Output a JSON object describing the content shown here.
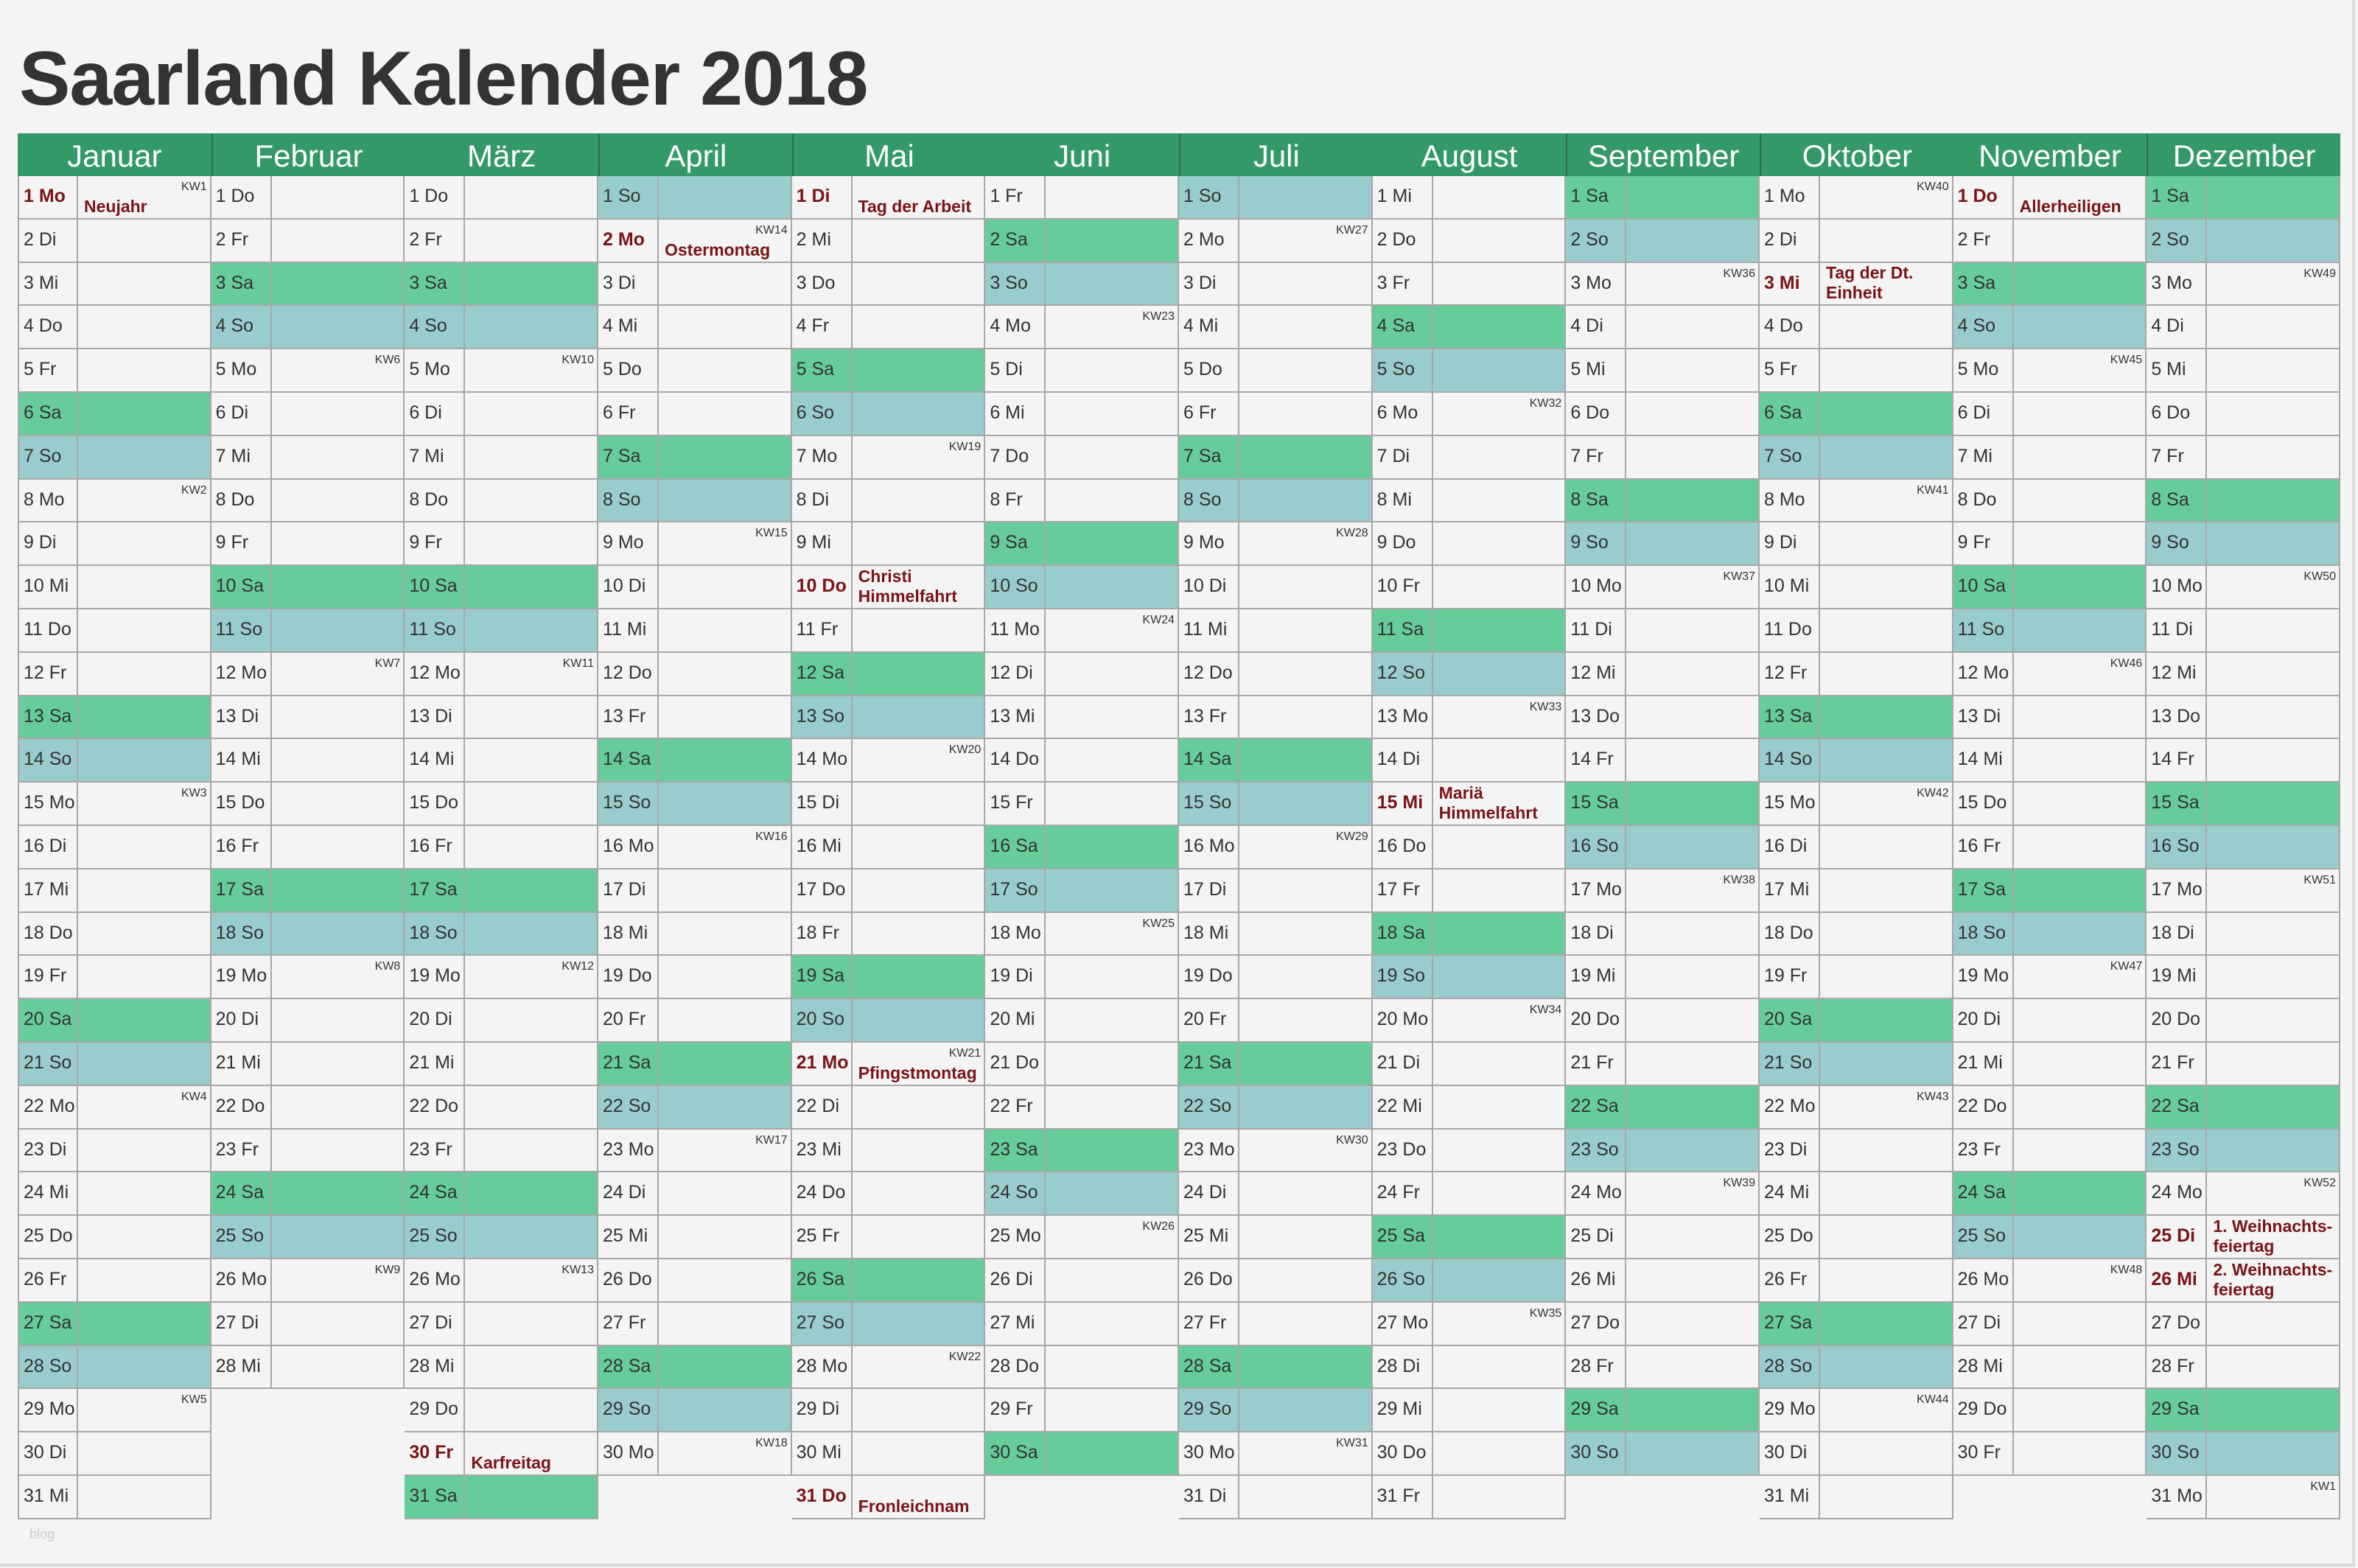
{
  "title": "Saarland Kalender 2018",
  "watermark": "blog",
  "colors": {
    "header": "#339966",
    "saturday": "#66cc99",
    "sunday": "#99cccc",
    "holiday": "#7a1416"
  },
  "months": [
    {
      "name": "Januar",
      "days": [
        "1 Mo",
        "2 Di",
        "3 Mi",
        "4 Do",
        "5 Fr",
        "6 Sa",
        "7 So",
        "8 Mo",
        "9 Di",
        "10 Mi",
        "11 Do",
        "12 Fr",
        "13 Sa",
        "14 So",
        "15 Mo",
        "16 Di",
        "17 Mi",
        "18 Do",
        "19 Fr",
        "20 Sa",
        "21 So",
        "22 Mo",
        "23 Di",
        "24 Mi",
        "25 Do",
        "26 Fr",
        "27 Sa",
        "28 So",
        "29 Mo",
        "30 Di",
        "31 Mi"
      ],
      "kw": {
        "1": "KW1",
        "8": "KW2",
        "15": "KW3",
        "22": "KW4",
        "29": "KW5"
      },
      "holidays": {
        "1": "Neujahr"
      }
    },
    {
      "name": "Februar",
      "days": [
        "1 Do",
        "2 Fr",
        "3 Sa",
        "4 So",
        "5 Mo",
        "6 Di",
        "7 Mi",
        "8 Do",
        "9 Fr",
        "10 Sa",
        "11 So",
        "12 Mo",
        "13 Di",
        "14 Mi",
        "15 Do",
        "16 Fr",
        "17 Sa",
        "18 So",
        "19 Mo",
        "20 Di",
        "21 Mi",
        "22 Do",
        "23 Fr",
        "24 Sa",
        "25 So",
        "26 Mo",
        "27 Di",
        "28 Mi"
      ],
      "kw": {
        "5": "KW6",
        "12": "KW7",
        "19": "KW8",
        "26": "KW9"
      },
      "holidays": {}
    },
    {
      "name": "März",
      "days": [
        "1 Do",
        "2 Fr",
        "3 Sa",
        "4 So",
        "5 Mo",
        "6 Di",
        "7 Mi",
        "8 Do",
        "9 Fr",
        "10 Sa",
        "11 So",
        "12 Mo",
        "13 Di",
        "14 Mi",
        "15 Do",
        "16 Fr",
        "17 Sa",
        "18 So",
        "19 Mo",
        "20 Di",
        "21 Mi",
        "22 Do",
        "23 Fr",
        "24 Sa",
        "25 So",
        "26 Mo",
        "27 Di",
        "28 Mi",
        "29 Do",
        "30 Fr",
        "31 Sa"
      ],
      "kw": {
        "5": "KW10",
        "12": "KW11",
        "19": "KW12",
        "26": "KW13"
      },
      "holidays": {
        "30": "Karfreitag"
      }
    },
    {
      "name": "April",
      "days": [
        "1 So",
        "2 Mo",
        "3 Di",
        "4 Mi",
        "5 Do",
        "6 Fr",
        "7 Sa",
        "8 So",
        "9 Mo",
        "10 Di",
        "11 Mi",
        "12 Do",
        "13 Fr",
        "14 Sa",
        "15 So",
        "16 Mo",
        "17 Di",
        "18 Mi",
        "19 Do",
        "20 Fr",
        "21 Sa",
        "22 So",
        "23 Mo",
        "24 Di",
        "25 Mi",
        "26 Do",
        "27 Fr",
        "28 Sa",
        "29 So",
        "30 Mo"
      ],
      "kw": {
        "2": "KW14",
        "9": "KW15",
        "16": "KW16",
        "23": "KW17",
        "30": "KW18"
      },
      "holidays": {
        "2": "Ostermontag"
      }
    },
    {
      "name": "Mai",
      "days": [
        "1 Di",
        "2 Mi",
        "3 Do",
        "4 Fr",
        "5 Sa",
        "6 So",
        "7 Mo",
        "8 Di",
        "9 Mi",
        "10 Do",
        "11 Fr",
        "12 Sa",
        "13 So",
        "14 Mo",
        "15 Di",
        "16 Mi",
        "17 Do",
        "18 Fr",
        "19 Sa",
        "20 So",
        "21 Mo",
        "22 Di",
        "23 Mi",
        "24 Do",
        "25 Fr",
        "26 Sa",
        "27 So",
        "28 Mo",
        "29 Di",
        "30 Mi",
        "31 Do"
      ],
      "kw": {
        "7": "KW19",
        "14": "KW20",
        "21": "KW21",
        "28": "KW22"
      },
      "holidays": {
        "1": "Tag der Arbeit",
        "10": "Christi\nHimmelfahrt",
        "21": "Pfingstmontag",
        "31": "Fronleichnam"
      }
    },
    {
      "name": "Juni",
      "days": [
        "1 Fr",
        "2 Sa",
        "3 So",
        "4 Mo",
        "5 Di",
        "6 Mi",
        "7 Do",
        "8 Fr",
        "9 Sa",
        "10 So",
        "11 Mo",
        "12 Di",
        "13 Mi",
        "14 Do",
        "15 Fr",
        "16 Sa",
        "17 So",
        "18 Mo",
        "19 Di",
        "20 Mi",
        "21 Do",
        "22 Fr",
        "23 Sa",
        "24 So",
        "25 Mo",
        "26 Di",
        "27 Mi",
        "28 Do",
        "29 Fr",
        "30 Sa"
      ],
      "kw": {
        "4": "KW23",
        "11": "KW24",
        "18": "KW25",
        "25": "KW26"
      },
      "holidays": {}
    },
    {
      "name": "Juli",
      "days": [
        "1 So",
        "2 Mo",
        "3 Di",
        "4 Mi",
        "5 Do",
        "6 Fr",
        "7 Sa",
        "8 So",
        "9 Mo",
        "10 Di",
        "11 Mi",
        "12 Do",
        "13 Fr",
        "14 Sa",
        "15 So",
        "16 Mo",
        "17 Di",
        "18 Mi",
        "19 Do",
        "20 Fr",
        "21 Sa",
        "22 So",
        "23 Mo",
        "24 Di",
        "25 Mi",
        "26 Do",
        "27 Fr",
        "28 Sa",
        "29 So",
        "30 Mo",
        "31 Di"
      ],
      "kw": {
        "2": "KW27",
        "9": "KW28",
        "16": "KW29",
        "23": "KW30",
        "30": "KW31"
      },
      "holidays": {}
    },
    {
      "name": "August",
      "days": [
        "1 Mi",
        "2 Do",
        "3 Fr",
        "4 Sa",
        "5 So",
        "6 Mo",
        "7 Di",
        "8 Mi",
        "9 Do",
        "10 Fr",
        "11 Sa",
        "12 So",
        "13 Mo",
        "14 Di",
        "15 Mi",
        "16 Do",
        "17 Fr",
        "18 Sa",
        "19 So",
        "20 Mo",
        "21 Di",
        "22 Mi",
        "23 Do",
        "24 Fr",
        "25 Sa",
        "26 So",
        "27 Mo",
        "28 Di",
        "29 Mi",
        "30 Do",
        "31 Fr"
      ],
      "kw": {
        "6": "KW32",
        "13": "KW33",
        "20": "KW34",
        "27": "KW35"
      },
      "holidays": {
        "15": "Mariä\nHimmelfahrt"
      }
    },
    {
      "name": "September",
      "days": [
        "1 Sa",
        "2 So",
        "3 Mo",
        "4 Di",
        "5 Mi",
        "6 Do",
        "7 Fr",
        "8 Sa",
        "9 So",
        "10 Mo",
        "11 Di",
        "12 Mi",
        "13 Do",
        "14 Fr",
        "15 Sa",
        "16 So",
        "17 Mo",
        "18 Di",
        "19 Mi",
        "20 Do",
        "21 Fr",
        "22 Sa",
        "23 So",
        "24 Mo",
        "25 Di",
        "26 Mi",
        "27 Do",
        "28 Fr",
        "29 Sa",
        "30 So"
      ],
      "kw": {
        "3": "KW36",
        "10": "KW37",
        "17": "KW38",
        "24": "KW39"
      },
      "holidays": {}
    },
    {
      "name": "Oktober",
      "days": [
        "1 Mo",
        "2 Di",
        "3 Mi",
        "4 Do",
        "5 Fr",
        "6 Sa",
        "7 So",
        "8 Mo",
        "9 Di",
        "10 Mi",
        "11 Do",
        "12 Fr",
        "13 Sa",
        "14 So",
        "15 Mo",
        "16 Di",
        "17 Mi",
        "18 Do",
        "19 Fr",
        "20 Sa",
        "21 So",
        "22 Mo",
        "23 Di",
        "24 Mi",
        "25 Do",
        "26 Fr",
        "27 Sa",
        "28 So",
        "29 Mo",
        "30 Di",
        "31 Mi"
      ],
      "kw": {
        "1": "KW40",
        "8": "KW41",
        "15": "KW42",
        "22": "KW43",
        "29": "KW44"
      },
      "holidays": {
        "3": "Tag der Dt.\nEinheit"
      }
    },
    {
      "name": "November",
      "days": [
        "1 Do",
        "2 Fr",
        "3 Sa",
        "4 So",
        "5 Mo",
        "6 Di",
        "7 Mi",
        "8 Do",
        "9 Fr",
        "10 Sa",
        "11 So",
        "12 Mo",
        "13 Di",
        "14 Mi",
        "15 Do",
        "16 Fr",
        "17 Sa",
        "18 So",
        "19 Mo",
        "20 Di",
        "21 Mi",
        "22 Do",
        "23 Fr",
        "24 Sa",
        "25 So",
        "26 Mo",
        "27 Di",
        "28 Mi",
        "29 Do",
        "30 Fr"
      ],
      "kw": {
        "5": "KW45",
        "12": "KW46",
        "19": "KW47",
        "26": "KW48"
      },
      "holidays": {
        "1": "Allerheiligen"
      }
    },
    {
      "name": "Dezember",
      "days": [
        "1 Sa",
        "2 So",
        "3 Mo",
        "4 Di",
        "5 Mi",
        "6 Do",
        "7 Fr",
        "8 Sa",
        "9 So",
        "10 Mo",
        "11 Di",
        "12 Mi",
        "13 Do",
        "14 Fr",
        "15 Sa",
        "16 So",
        "17 Mo",
        "18 Di",
        "19 Mi",
        "20 Do",
        "21 Fr",
        "22 Sa",
        "23 So",
        "24 Mo",
        "25 Di",
        "26 Mi",
        "27 Do",
        "28 Fr",
        "29 Sa",
        "30 So",
        "31 Mo"
      ],
      "kw": {
        "3": "KW49",
        "10": "KW50",
        "17": "KW51",
        "24": "KW52",
        "31": "KW1"
      },
      "holidays": {
        "25": "1. Weihnachts-\nfeiertag",
        "26": "2. Weihnachts-\nfeiertag"
      }
    }
  ]
}
